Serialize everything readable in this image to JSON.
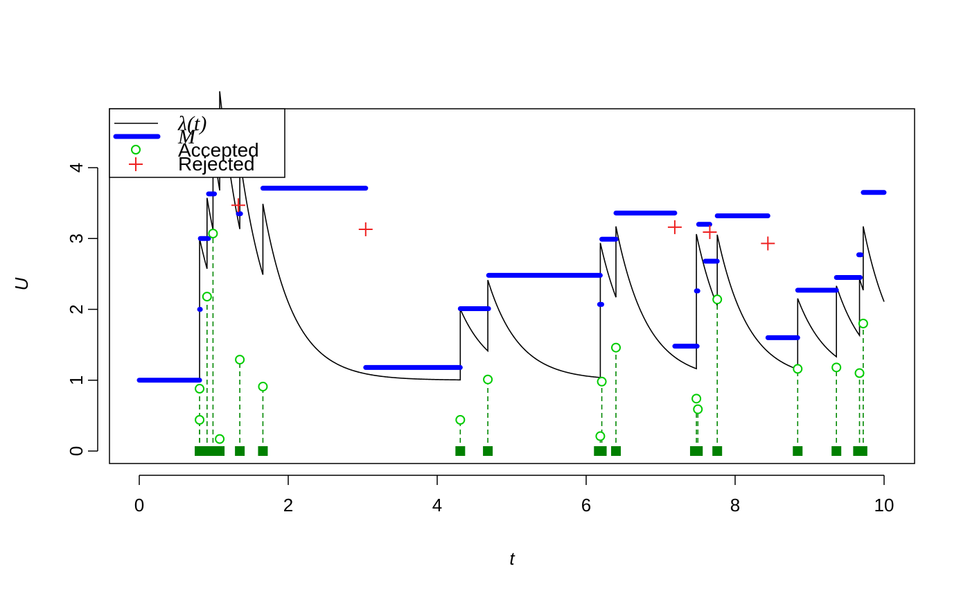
{
  "chart_data": {
    "type": "line",
    "xlabel": "t",
    "ylabel": "U",
    "xlim": [
      -0.4,
      10.4
    ],
    "ylim": [
      -0.18,
      4.85
    ],
    "x_ticks": [
      0,
      2,
      4,
      6,
      8,
      10
    ],
    "y_ticks": [
      0,
      1,
      2,
      3,
      4
    ],
    "x_tick_labels": [
      "0",
      "2",
      "4",
      "6",
      "8",
      "10"
    ],
    "y_tick_labels": [
      "0",
      "1",
      "2",
      "3",
      "4"
    ],
    "legend": {
      "position": "top-left",
      "entries": [
        {
          "label": "λ(t)",
          "style": "line",
          "color": "#000000"
        },
        {
          "label": "M",
          "style": "thick-line",
          "color": "#0000FF"
        },
        {
          "label": "Accepted",
          "style": "open-circle",
          "color": "#00CC00"
        },
        {
          "label": "Rejected",
          "style": "plus",
          "color": "#EE2222"
        }
      ]
    },
    "colors": {
      "intensity": "#000000",
      "bound": "#0000FF",
      "accepted": "#00CC00",
      "accepted_stem": "#008800",
      "rug": "#008000",
      "rejected": "#EE2222"
    },
    "series": [
      {
        "name": "λ(t)",
        "kind": "intensity",
        "base": 1.0,
        "decay": 2.4,
        "t_end": 10.0,
        "jumps": [
          {
            "t": 0.81,
            "a": 2.0
          },
          {
            "t": 0.91,
            "a": 1.0
          },
          {
            "t": 0.99,
            "a": 1.2
          },
          {
            "t": 1.08,
            "a": 1.4
          },
          {
            "t": 1.35,
            "a": 1.0
          },
          {
            "t": 1.66,
            "a": 1.0
          },
          {
            "t": 4.31,
            "a": 1.0
          },
          {
            "t": 4.68,
            "a": 1.0
          },
          {
            "t": 6.19,
            "a": 1.9
          },
          {
            "t": 6.4,
            "a": 1.0
          },
          {
            "t": 7.48,
            "a": 1.9
          },
          {
            "t": 7.76,
            "a": 1.0
          },
          {
            "t": 8.84,
            "a": 1.0
          },
          {
            "t": 9.36,
            "a": 1.0
          },
          {
            "t": 9.67,
            "a": 0.8
          },
          {
            "t": 9.72,
            "a": 0.9
          }
        ]
      },
      {
        "name": "M",
        "kind": "bound",
        "segments": [
          [
            0.0,
            0.81,
            1.0
          ],
          [
            0.81,
            0.82,
            2.0
          ],
          [
            0.82,
            0.93,
            3.0
          ],
          [
            0.93,
            1.01,
            3.63
          ],
          [
            1.01,
            1.08,
            4.27
          ],
          [
            1.08,
            1.33,
            4.64
          ],
          [
            1.33,
            1.36,
            3.35
          ],
          [
            1.36,
            1.66,
            4.15
          ],
          [
            1.66,
            3.04,
            3.71
          ],
          [
            3.04,
            4.31,
            1.18
          ],
          [
            4.31,
            4.69,
            2.01
          ],
          [
            4.69,
            6.19,
            2.48
          ],
          [
            6.18,
            6.21,
            2.07
          ],
          [
            6.21,
            6.4,
            2.99
          ],
          [
            6.4,
            7.19,
            3.36
          ],
          [
            7.19,
            7.49,
            1.48
          ],
          [
            7.48,
            7.5,
            2.26
          ],
          [
            7.51,
            7.66,
            3.2
          ],
          [
            7.6,
            7.76,
            2.68
          ],
          [
            7.76,
            8.44,
            3.32
          ],
          [
            8.44,
            8.84,
            1.6
          ],
          [
            8.84,
            9.36,
            2.27
          ],
          [
            9.36,
            9.68,
            2.45
          ],
          [
            9.66,
            9.69,
            2.77
          ],
          [
            9.72,
            10.0,
            3.65
          ]
        ]
      },
      {
        "name": "Accepted",
        "kind": "accepted",
        "points": [
          [
            0.81,
            0.88
          ],
          [
            0.81,
            0.44
          ],
          [
            0.91,
            2.18
          ],
          [
            0.99,
            3.07
          ],
          [
            1.08,
            0.17
          ],
          [
            1.35,
            1.29
          ],
          [
            1.66,
            0.91
          ],
          [
            4.31,
            0.44
          ],
          [
            4.68,
            1.01
          ],
          [
            6.19,
            0.21
          ],
          [
            6.21,
            0.98
          ],
          [
            6.4,
            1.46
          ],
          [
            7.48,
            0.74
          ],
          [
            7.5,
            0.59
          ],
          [
            7.76,
            2.14
          ],
          [
            8.84,
            1.16
          ],
          [
            9.36,
            1.18
          ],
          [
            9.67,
            1.1
          ],
          [
            9.72,
            1.8
          ]
        ]
      },
      {
        "name": "Rejected",
        "kind": "rejected",
        "points": [
          [
            1.33,
            3.47
          ],
          [
            3.04,
            3.13
          ],
          [
            7.19,
            3.16
          ],
          [
            7.66,
            3.09
          ],
          [
            8.44,
            2.93
          ]
        ]
      }
    ],
    "rug_points": [
      0.81,
      0.85,
      0.91,
      0.99,
      1.04,
      1.08,
      1.35,
      1.66,
      4.31,
      4.68,
      6.17,
      6.21,
      6.4,
      7.46,
      7.5,
      7.76,
      8.84,
      9.36,
      9.65,
      9.71
    ]
  }
}
